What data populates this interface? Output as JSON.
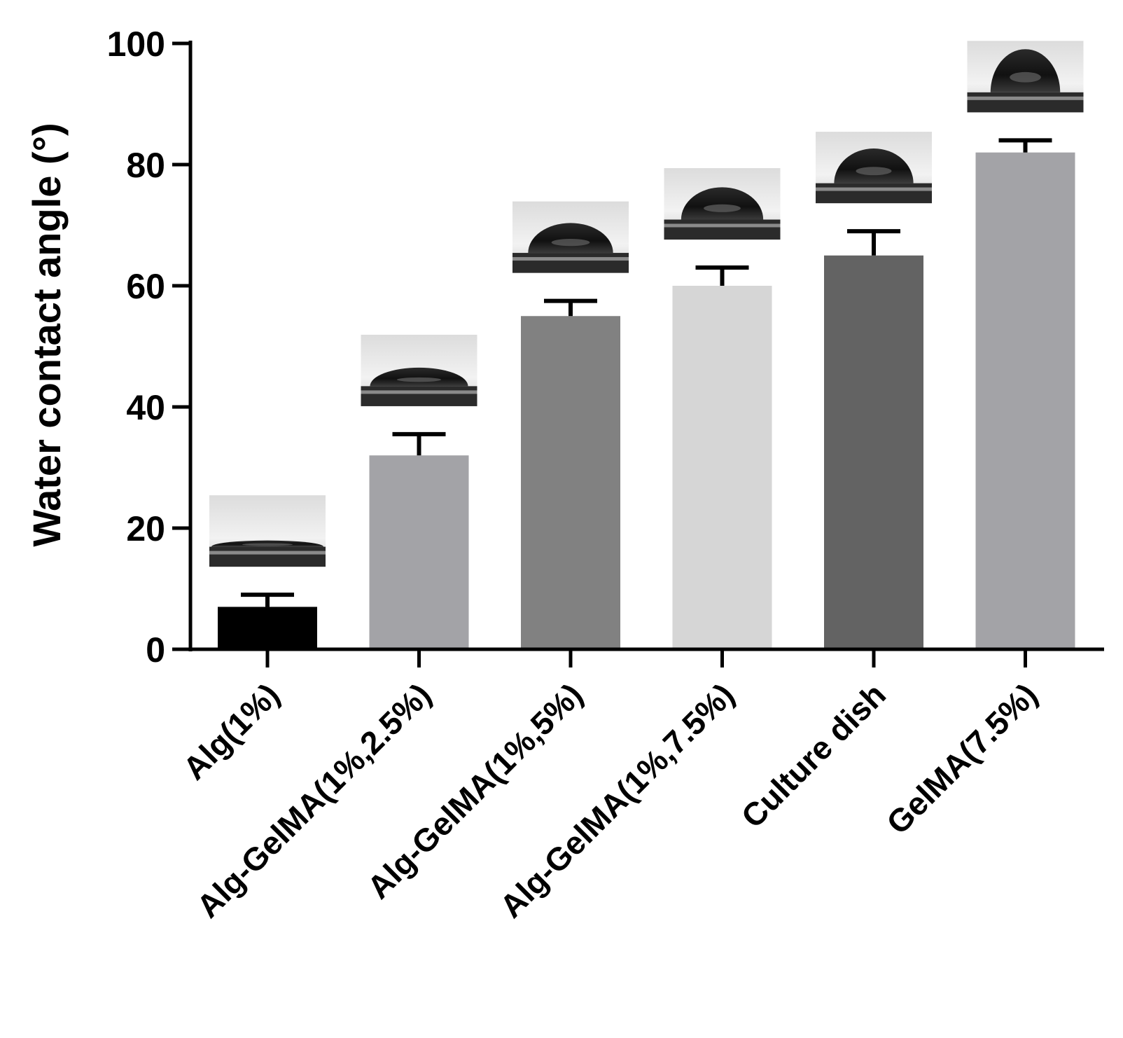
{
  "chart_data": {
    "type": "bar",
    "title": "",
    "xlabel": "",
    "ylabel": "Water contact angle (°)",
    "ylim": [
      0,
      100
    ],
    "yticks": [
      0,
      20,
      40,
      60,
      80,
      100
    ],
    "grid": false,
    "legend": "none",
    "categories": [
      "Alg(1%)",
      "Alg-GelMA(1%,2.5%)",
      "Alg-GelMA(1%,5%)",
      "Alg-GelMA(1%,7.5%)",
      "Culture dish",
      "GelMA(7.5%)"
    ],
    "values": [
      7,
      32,
      55,
      60,
      65,
      82
    ],
    "errors": [
      2,
      3.5,
      2.5,
      3,
      4,
      2
    ],
    "colors": [
      "#000000",
      "#a3a3a7",
      "#818181",
      "#d6d6d6",
      "#636363",
      "#a3a3a7"
    ],
    "annotations": [
      "water-droplet-image",
      "water-droplet-image",
      "water-droplet-image",
      "water-droplet-image",
      "water-droplet-image",
      "water-droplet-image"
    ]
  }
}
